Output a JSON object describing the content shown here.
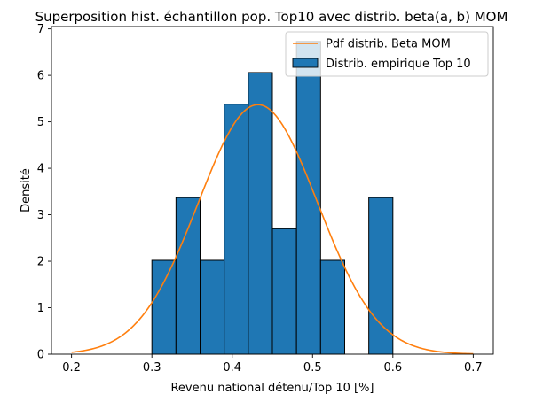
{
  "chart_data": {
    "type": "histogram",
    "title": "Superposition hist. échantillon pop. Top10 avec distrib. beta(a, b) MOM",
    "xlabel": "Revenu national détenu/Top 10 [%]",
    "ylabel": "Densité",
    "xlim": [
      0.175,
      0.725
    ],
    "ylim": [
      0,
      7.05
    ],
    "xticks": [
      0.2,
      0.3,
      0.4,
      0.5,
      0.6,
      0.7
    ],
    "xtick_labels": [
      "0.2",
      "0.3",
      "0.4",
      "0.5",
      "0.6",
      "0.7"
    ],
    "yticks": [
      0,
      1,
      2,
      3,
      4,
      5,
      6,
      7
    ],
    "ytick_labels": [
      "0",
      "1",
      "2",
      "3",
      "4",
      "5",
      "6",
      "7"
    ],
    "grid": false,
    "legend_position": "top-right",
    "series": [
      {
        "name": "Pdf distrib. Beta MOM",
        "kind": "line",
        "color": "#ff7f0e",
        "mean": 0.432,
        "sd": 0.0743,
        "x_range": [
          0.2,
          0.7
        ]
      },
      {
        "name": "Distrib. empirique Top 10",
        "kind": "bar",
        "color": "#1f77b4",
        "edgecolor": "#000000",
        "bins": [
          {
            "x0": 0.3,
            "x1": 0.33,
            "value": 2.02
          },
          {
            "x0": 0.33,
            "x1": 0.36,
            "value": 3.37
          },
          {
            "x0": 0.36,
            "x1": 0.39,
            "value": 2.02
          },
          {
            "x0": 0.39,
            "x1": 0.42,
            "value": 5.38
          },
          {
            "x0": 0.42,
            "x1": 0.45,
            "value": 6.06
          },
          {
            "x0": 0.45,
            "x1": 0.48,
            "value": 2.7
          },
          {
            "x0": 0.48,
            "x1": 0.51,
            "value": 6.73
          },
          {
            "x0": 0.51,
            "x1": 0.54,
            "value": 2.02
          },
          {
            "x0": 0.54,
            "x1": 0.57,
            "value": 0
          },
          {
            "x0": 0.57,
            "x1": 0.6,
            "value": 3.37
          }
        ]
      }
    ]
  }
}
